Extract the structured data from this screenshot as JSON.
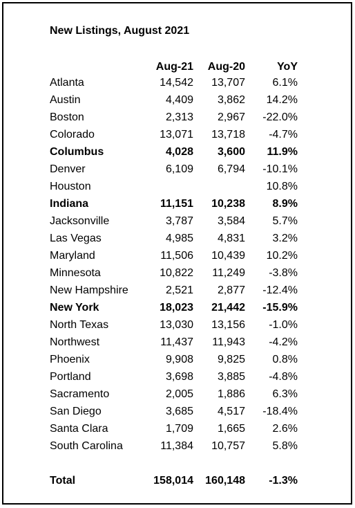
{
  "title": "New Listings, August 2021",
  "table": {
    "header": [
      null,
      "Aug-21",
      "Aug-20",
      "YoY"
    ],
    "rows": [
      {
        "cells": [
          "Atlanta",
          "14,542",
          "13,707",
          "6.1%"
        ],
        "bold": false
      },
      {
        "cells": [
          "Austin",
          "4,409",
          "3,862",
          "14.2%"
        ],
        "bold": false
      },
      {
        "cells": [
          "Boston",
          "2,313",
          "2,967",
          "-22.0%"
        ],
        "bold": false
      },
      {
        "cells": [
          "Colorado",
          "13,071",
          "13,718",
          "-4.7%"
        ],
        "bold": false
      },
      {
        "cells": [
          "Columbus",
          "4,028",
          "3,600",
          "11.9%"
        ],
        "bold": true
      },
      {
        "cells": [
          "Denver",
          "6,109",
          "6,794",
          "-10.1%"
        ],
        "bold": false
      },
      {
        "cells": [
          "Houston",
          null,
          null,
          "10.8%"
        ],
        "bold": false
      },
      {
        "cells": [
          "Indiana",
          "11,151",
          "10,238",
          "8.9%"
        ],
        "bold": true
      },
      {
        "cells": [
          "Jacksonville",
          "3,787",
          "3,584",
          "5.7%"
        ],
        "bold": false
      },
      {
        "cells": [
          "Las Vegas",
          "4,985",
          "4,831",
          "3.2%"
        ],
        "bold": false
      },
      {
        "cells": [
          "Maryland",
          "11,506",
          "10,439",
          "10.2%"
        ],
        "bold": false
      },
      {
        "cells": [
          "Minnesota",
          "10,822",
          "11,249",
          "-3.8%"
        ],
        "bold": false
      },
      {
        "cells": [
          "New Hampshire",
          "2,521",
          "2,877",
          "-12.4%"
        ],
        "bold": false
      },
      {
        "cells": [
          "New York",
          "18,023",
          "21,442",
          "-15.9%"
        ],
        "bold": true
      },
      {
        "cells": [
          "North Texas",
          "13,030",
          "13,156",
          "-1.0%"
        ],
        "bold": false
      },
      {
        "cells": [
          "Northwest",
          "11,437",
          "11,943",
          "-4.2%"
        ],
        "bold": false
      },
      {
        "cells": [
          "Phoenix",
          "9,908",
          "9,825",
          "0.8%"
        ],
        "bold": false
      },
      {
        "cells": [
          "Portland",
          "3,698",
          "3,885",
          "-4.8%"
        ],
        "bold": false
      },
      {
        "cells": [
          "Sacramento",
          "2,005",
          "1,886",
          "6.3%"
        ],
        "bold": false
      },
      {
        "cells": [
          "San Diego",
          "3,685",
          "4,517",
          "-18.4%"
        ],
        "bold": false
      },
      {
        "cells": [
          "Santa Clara",
          "1,709",
          "1,665",
          "2.6%"
        ],
        "bold": false
      },
      {
        "cells": [
          "South Carolina",
          "11,384",
          "10,757",
          "5.8%"
        ],
        "bold": false
      }
    ],
    "total": {
      "cells": [
        "Total",
        "158,014",
        "160,148",
        "-1.3%"
      ],
      "bold": true
    }
  }
}
